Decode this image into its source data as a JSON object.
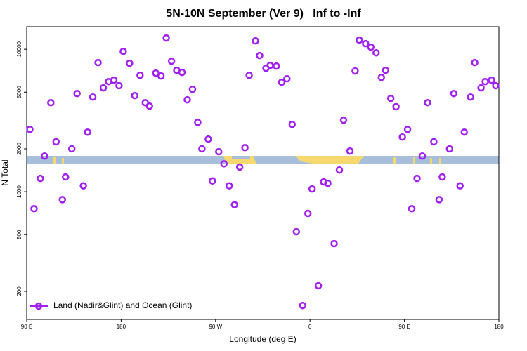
{
  "chart_data": {
    "type": "scatter",
    "title": "5N-10N September (Ver 9)   Inf to -Inf",
    "xlabel": "Longitude (deg E)",
    "ylabel": "N Total",
    "xlim": [
      90,
      540
    ],
    "xticks": [
      {
        "value": 90,
        "label": "90 E"
      },
      180,
      {
        "value": 270,
        "label": "90 W"
      },
      {
        "value": 360,
        "label": "0"
      },
      {
        "value": 450,
        "label": "90 E"
      },
      {
        "value": 540,
        "label": "180"
      }
    ],
    "ylim": [
      127,
      14400
    ],
    "ylog": true,
    "yticks": [
      200,
      500,
      1000,
      2000,
      5000,
      10000
    ],
    "legend": "lower left",
    "x": [
      93,
      97,
      103,
      107,
      113,
      118,
      124,
      127,
      133,
      138,
      144,
      148,
      153,
      158,
      163,
      168,
      173,
      178,
      182,
      188,
      193,
      198,
      203,
      207,
      213,
      218,
      223,
      228,
      233,
      238,
      243,
      248,
      253,
      257,
      263,
      267,
      273,
      278,
      283,
      288,
      293,
      298,
      302,
      308,
      312,
      318,
      322,
      328,
      333,
      338,
      343,
      347,
      353,
      358,
      362,
      368,
      373,
      377,
      383,
      388,
      392,
      398,
      403,
      407,
      413,
      418,
      423,
      428,
      432,
      437,
      442,
      448,
      453,
      457,
      462,
      467,
      472,
      478,
      483,
      486,
      493,
      497,
      503,
      507,
      513,
      517,
      523,
      527,
      533,
      537
    ],
    "series": [
      {
        "name": "Land (Nadir&Glint) and Ocean (Glint)",
        "color": "#a020f0",
        "values": [
          2740,
          760,
          1240,
          1780,
          4220,
          2240,
          880,
          1270,
          2000,
          4890,
          1100,
          2620,
          4620,
          8060,
          5360,
          5930,
          6070,
          5550,
          9660,
          7970,
          4730,
          6570,
          4220,
          3990,
          6800,
          6500,
          11990,
          8250,
          7120,
          6880,
          4420,
          5240,
          3070,
          2000,
          2340,
          1190,
          1910,
          1570,
          1100,
          810,
          1490,
          2040,
          6570,
          11460,
          9030,
          7360,
          7700,
          7620,
          5870,
          6210,
          2970,
          524,
          159,
          704,
          1046,
          219,
          1172,
          1146,
          432,
          1420,
          3180,
          1930,
          7040,
          11590,
          10950,
          10350,
          9440,
          6350,
          7120,
          4520,
          3950,
          2420,
          2740,
          760,
          1240,
          1780,
          4220,
          2240,
          880,
          1270,
          2000,
          4890,
          1100,
          2620,
          4620,
          8060,
          5360,
          5930,
          6070,
          5550
        ]
      }
    ]
  }
}
